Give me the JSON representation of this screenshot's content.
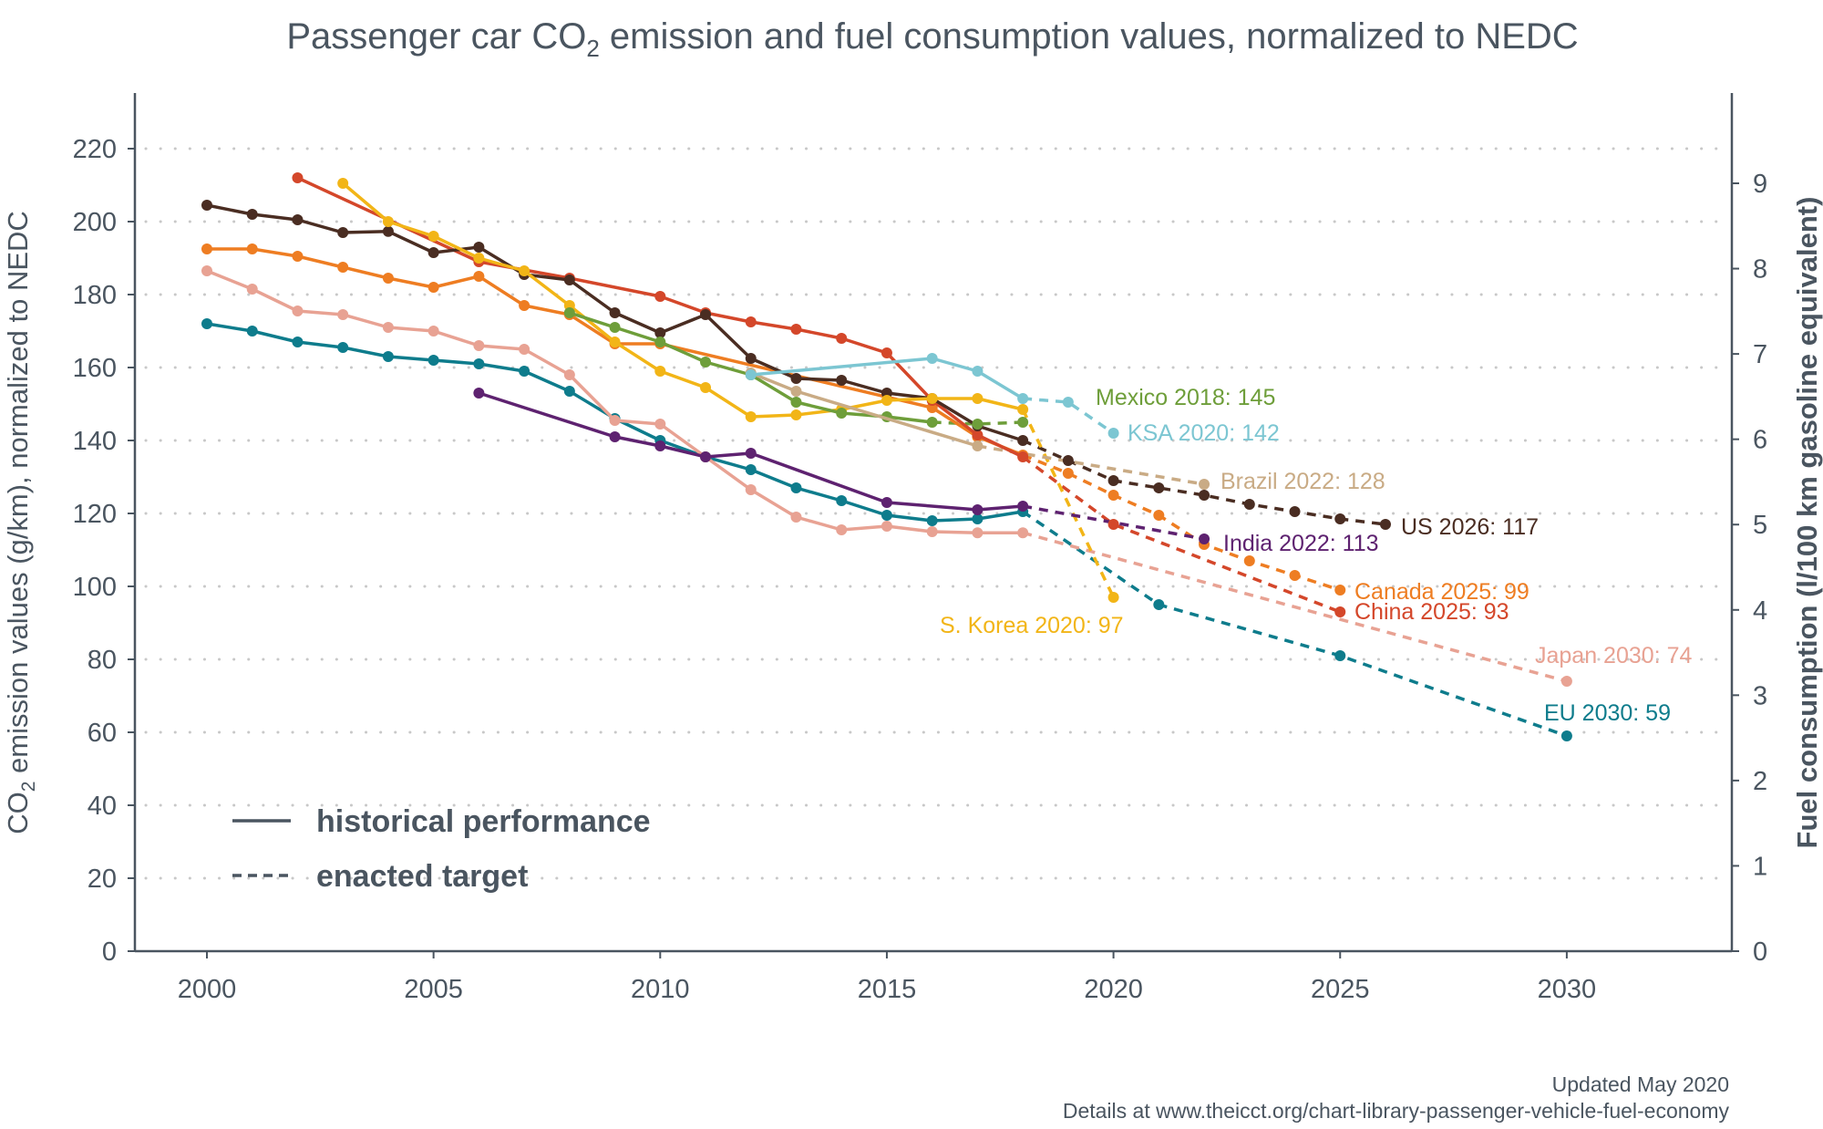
{
  "chart_data": {
    "type": "line",
    "title": {
      "pre": "Passenger car CO",
      "sub": "2",
      "post": " emission and fuel consumption values, normalized to NEDC"
    },
    "ylabel": {
      "pre": "CO",
      "sub": "2",
      "post": " emission values (g/km), normalized to NEDC"
    },
    "ylabel_right": "Fuel consumption (l/100 km gasoline equivalent)",
    "xlim": [
      1998.4,
      2033.6
    ],
    "ylim": [
      0,
      235
    ],
    "ylim_right": [
      0,
      10
    ],
    "x_ticks": [
      2000,
      2005,
      2010,
      2015,
      2020,
      2025,
      2030
    ],
    "y_ticks": [
      0,
      20,
      40,
      60,
      80,
      100,
      120,
      140,
      160,
      180,
      200,
      220
    ],
    "y_ticks_right": [
      0,
      1,
      2,
      3,
      4,
      5,
      6,
      7,
      8,
      9
    ],
    "grid": "horizontal dotted",
    "legend": {
      "placement": "bottom-left",
      "historical": "historical performance",
      "target": "enacted target"
    },
    "series": [
      {
        "name": "EU",
        "label": "EU 2030: 59",
        "color": "#0e7c8c",
        "historical": [
          [
            2000,
            172
          ],
          [
            2001,
            170
          ],
          [
            2002,
            167
          ],
          [
            2003,
            165.5
          ],
          [
            2004,
            163
          ],
          [
            2005,
            162
          ],
          [
            2006,
            161
          ],
          [
            2007,
            159
          ],
          [
            2008,
            153.5
          ],
          [
            2009,
            146
          ],
          [
            2010,
            140
          ],
          [
            2011,
            135.5
          ],
          [
            2012,
            132
          ],
          [
            2013,
            127
          ],
          [
            2014,
            123.5
          ],
          [
            2015,
            119.5
          ],
          [
            2016,
            118
          ],
          [
            2017,
            118.5
          ],
          [
            2018,
            120.5
          ]
        ],
        "target": [
          [
            2021,
            95
          ],
          [
            2025,
            81
          ],
          [
            2030,
            59
          ]
        ]
      },
      {
        "name": "Japan",
        "label": "Japan 2030: 74",
        "color": "#e8a293",
        "historical": [
          [
            2000,
            186.5
          ],
          [
            2001,
            181.5
          ],
          [
            2002,
            175.5
          ],
          [
            2003,
            174.5
          ],
          [
            2004,
            171
          ],
          [
            2005,
            170
          ],
          [
            2006,
            166
          ],
          [
            2007,
            165
          ],
          [
            2008,
            158
          ],
          [
            2009,
            145.5
          ],
          [
            2010,
            144.5
          ],
          [
            2011,
            135.5
          ],
          [
            2012,
            126.5
          ],
          [
            2013,
            119
          ],
          [
            2014,
            115.5
          ],
          [
            2015,
            116.5
          ],
          [
            2016,
            115
          ],
          [
            2017,
            114.7
          ],
          [
            2018,
            114.7
          ]
        ],
        "target": [
          [
            2030,
            74
          ]
        ]
      },
      {
        "name": "Canada",
        "label": "Canada 2025: 99",
        "color": "#ee7d22",
        "historical": [
          [
            2000,
            192.5
          ],
          [
            2001,
            192.5
          ],
          [
            2002,
            190.5
          ],
          [
            2003,
            187.5
          ],
          [
            2004,
            184.5
          ],
          [
            2005,
            182
          ],
          [
            2006,
            185
          ],
          [
            2007,
            177
          ],
          [
            2008,
            174.5
          ],
          [
            2009,
            166.5
          ],
          [
            2010,
            166.5
          ],
          [
            2016,
            149
          ],
          [
            2017,
            141
          ],
          [
            2018,
            136
          ]
        ],
        "target": [
          [
            2019,
            131
          ],
          [
            2020,
            125
          ],
          [
            2021,
            119.5
          ],
          [
            2022,
            111.5
          ],
          [
            2023,
            107
          ],
          [
            2024,
            103
          ],
          [
            2025,
            99
          ]
        ]
      },
      {
        "name": "China",
        "label": "China 2025: 93",
        "color": "#d4472a",
        "historical": [
          [
            2002,
            212
          ],
          [
            2006,
            189
          ],
          [
            2008,
            184.5
          ],
          [
            2010,
            179.5
          ],
          [
            2011,
            175
          ],
          [
            2012,
            172.5
          ],
          [
            2013,
            170.5
          ],
          [
            2014,
            168
          ],
          [
            2015,
            164
          ],
          [
            2016,
            151
          ],
          [
            2017,
            141.5
          ],
          [
            2018,
            135.5
          ]
        ],
        "target": [
          [
            2020,
            117
          ],
          [
            2025,
            93
          ]
        ]
      },
      {
        "name": "US",
        "label": "US 2026: 117",
        "color": "#4a2d22",
        "historical": [
          [
            2000,
            204.5
          ],
          [
            2001,
            202
          ],
          [
            2002,
            200.5
          ],
          [
            2003,
            197
          ],
          [
            2004,
            197.3
          ],
          [
            2005,
            191.5
          ],
          [
            2006,
            193
          ],
          [
            2007,
            185.5
          ],
          [
            2008,
            184
          ],
          [
            2009,
            175
          ],
          [
            2010,
            169.5
          ],
          [
            2011,
            174.5
          ],
          [
            2012,
            162.5
          ],
          [
            2013,
            157
          ],
          [
            2014,
            156.5
          ],
          [
            2015,
            153
          ],
          [
            2016,
            151.5
          ],
          [
            2017,
            144
          ],
          [
            2018,
            140
          ]
        ],
        "target": [
          [
            2019,
            134.5
          ],
          [
            2020,
            129
          ],
          [
            2021,
            127
          ],
          [
            2022,
            125
          ],
          [
            2023,
            122.5
          ],
          [
            2024,
            120.5
          ],
          [
            2025,
            118.5
          ],
          [
            2026,
            117
          ]
        ]
      },
      {
        "name": "S. Korea",
        "label": "S. Korea 2020: 97",
        "color": "#f2b517",
        "historical": [
          [
            2003,
            210.5
          ],
          [
            2004,
            200
          ],
          [
            2005,
            196
          ],
          [
            2006,
            190
          ],
          [
            2007,
            186.5
          ],
          [
            2008,
            177
          ],
          [
            2009,
            167
          ],
          [
            2010,
            159
          ],
          [
            2011,
            154.5
          ],
          [
            2012,
            146.5
          ],
          [
            2013,
            147
          ],
          [
            2014,
            148.5
          ],
          [
            2015,
            151
          ],
          [
            2016,
            151.5
          ],
          [
            2017,
            151.5
          ],
          [
            2018,
            148.5
          ]
        ],
        "target": [
          [
            2020,
            97
          ]
        ]
      },
      {
        "name": "Mexico",
        "label": "Mexico 2018: 145",
        "color": "#6e9e3a",
        "historical": [
          [
            2008,
            175
          ],
          [
            2009,
            171
          ],
          [
            2010,
            167
          ],
          [
            2011,
            161.5
          ],
          [
            2012,
            158
          ],
          [
            2013,
            150.5
          ],
          [
            2014,
            147.5
          ],
          [
            2015,
            146.5
          ],
          [
            2016,
            145
          ]
        ],
        "target": [
          [
            2017,
            144.5
          ],
          [
            2018,
            145
          ]
        ]
      },
      {
        "name": "Brazil",
        "label": "Brazil 2022: 128",
        "color": "#c9ab85",
        "historical": [
          [
            2012,
            158.5
          ],
          [
            2013,
            153.5
          ],
          [
            2017,
            138.5
          ]
        ],
        "target": [
          [
            2022,
            128
          ]
        ]
      },
      {
        "name": "KSA",
        "label": "KSA 2020: 142",
        "color": "#7cc6d2",
        "historical": [
          [
            2012,
            158
          ],
          [
            2016,
            162.5
          ],
          [
            2017,
            159
          ],
          [
            2018,
            151.5
          ]
        ],
        "target": [
          [
            2019,
            150.5
          ],
          [
            2020,
            142
          ]
        ]
      },
      {
        "name": "India",
        "label": "India 2022: 113",
        "color": "#5e2270",
        "historical": [
          [
            2006,
            153
          ],
          [
            2009,
            141
          ],
          [
            2010,
            138.5
          ],
          [
            2011,
            135.5
          ],
          [
            2012,
            136.5
          ],
          [
            2015,
            123
          ],
          [
            2017,
            121
          ],
          [
            2018,
            122
          ]
        ],
        "target": [
          [
            2022,
            113
          ]
        ]
      }
    ]
  },
  "footer": {
    "updated": "Updated May 2020",
    "details": "Details at www.theicct.org/chart-library-passenger-vehicle-fuel-economy"
  }
}
